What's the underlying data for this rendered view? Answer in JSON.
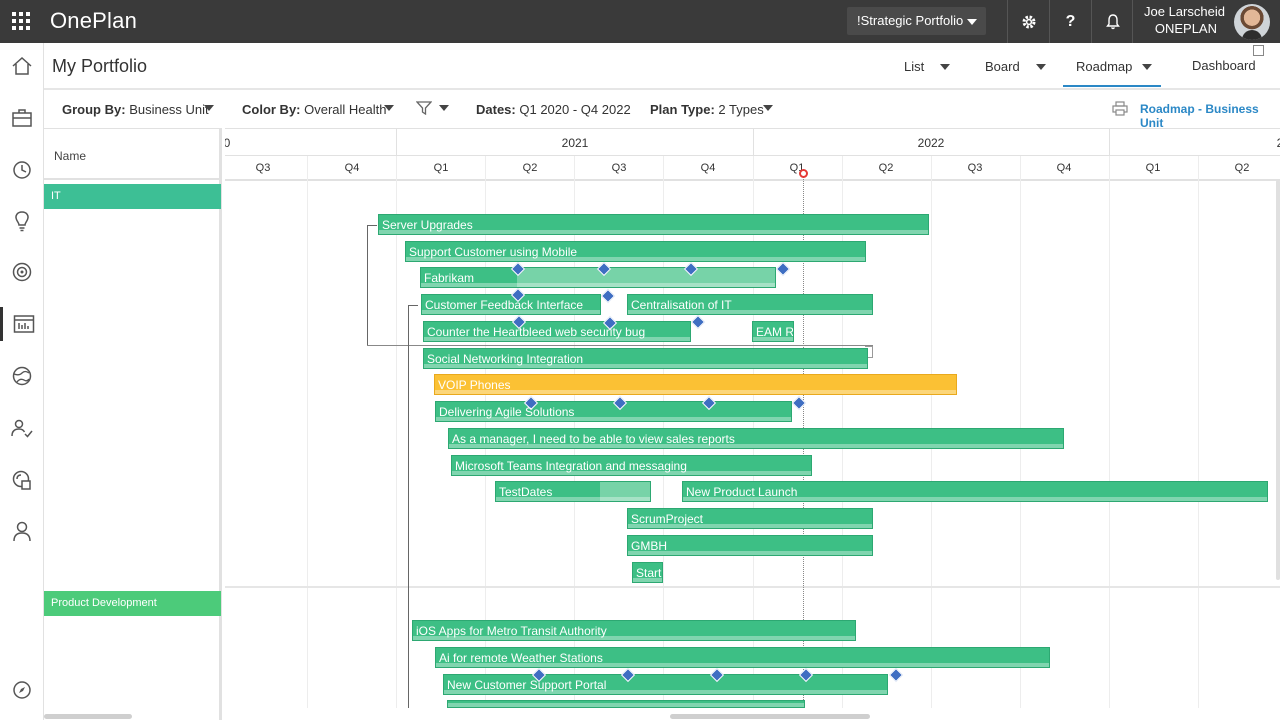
{
  "app": {
    "brand": "OnePlan",
    "portfolio_selector": "!Strategic Portfolio"
  },
  "user": {
    "name": "Joe Larscheid",
    "org": "ONEPLAN"
  },
  "topbar_icons": [
    "gear-icon",
    "help-icon",
    "bell-icon"
  ],
  "help_glyph": "?",
  "rail_icons": [
    "home-icon",
    "briefcase-icon",
    "history-icon",
    "lightbulb-icon",
    "target-icon",
    "roadmap-icon",
    "globe-icon",
    "people-icon",
    "integrations-icon",
    "person-icon",
    "compass-icon"
  ],
  "page": {
    "title": "My Portfolio"
  },
  "views": {
    "list": "List",
    "board": "Board",
    "roadmap": "Roadmap",
    "dashboard": "Dashboard",
    "active": "Roadmap"
  },
  "toolbar": {
    "group_by_label": "Group By:",
    "group_by_value": "Business Unit",
    "color_by_label": "Color By:",
    "color_by_value": "Overall Health",
    "dates_label": "Dates:",
    "dates_value": "Q1 2020 - Q4 2022",
    "plan_type_label": "Plan Type:",
    "plan_type_value": "2 Types",
    "roadmap_link": "Roadmap - Business Unit"
  },
  "grid": {
    "name_header": "Name"
  },
  "timeline": {
    "years": [
      "0",
      "2021",
      "2022",
      "2"
    ],
    "quarters": [
      "Q3",
      "Q4",
      "Q1",
      "Q2",
      "Q3",
      "Q4",
      "Q1",
      "Q2",
      "Q3",
      "Q4",
      "Q1",
      "Q2"
    ],
    "today_label": "Q1 2022"
  },
  "groups": [
    {
      "name": "IT",
      "color": "#3dbf95"
    },
    {
      "name": "Product Development",
      "color": "#4ccb7a"
    }
  ],
  "items": [
    {
      "name": "Server Upgrades",
      "status": "green"
    },
    {
      "name": "Support Customer using Mobile",
      "status": "green"
    },
    {
      "name": "Fabrikam",
      "status": "green",
      "progress": 0.27
    },
    {
      "name": "Customer Feedback Interface",
      "status": "green"
    },
    {
      "name": "Centralisation of IT",
      "status": "green"
    },
    {
      "name": "Counter the Heartbleed web security bug",
      "status": "green"
    },
    {
      "name": "EAM R",
      "status": "green"
    },
    {
      "name": "Social Networking Integration",
      "status": "green"
    },
    {
      "name": "VOIP Phones",
      "status": "amber"
    },
    {
      "name": "Delivering Agile Solutions",
      "status": "green"
    },
    {
      "name": "As a manager, I need to be able to view sales reports",
      "status": "green"
    },
    {
      "name": "Microsoft Teams Integration and messaging",
      "status": "green"
    },
    {
      "name": "TestDates",
      "status": "green",
      "progress": 0.66
    },
    {
      "name": "New Product Launch",
      "status": "green"
    },
    {
      "name": "ScrumProject",
      "status": "green"
    },
    {
      "name": "GMBH",
      "status": "green"
    },
    {
      "name": "Start",
      "status": "green"
    },
    {
      "name": "iOS Apps for Metro Transit Authority",
      "status": "green"
    },
    {
      "name": "Ai for remote Weather Stations",
      "status": "green"
    },
    {
      "name": "New Customer Support Portal",
      "status": "green"
    }
  ],
  "colors": {
    "topbar": "#3a3a3a",
    "bar_green": "#3dbf85",
    "bar_amber": "#fbc134",
    "milestone": "#3f6ec2",
    "link": "#2b88c6",
    "today": "#e53935"
  }
}
